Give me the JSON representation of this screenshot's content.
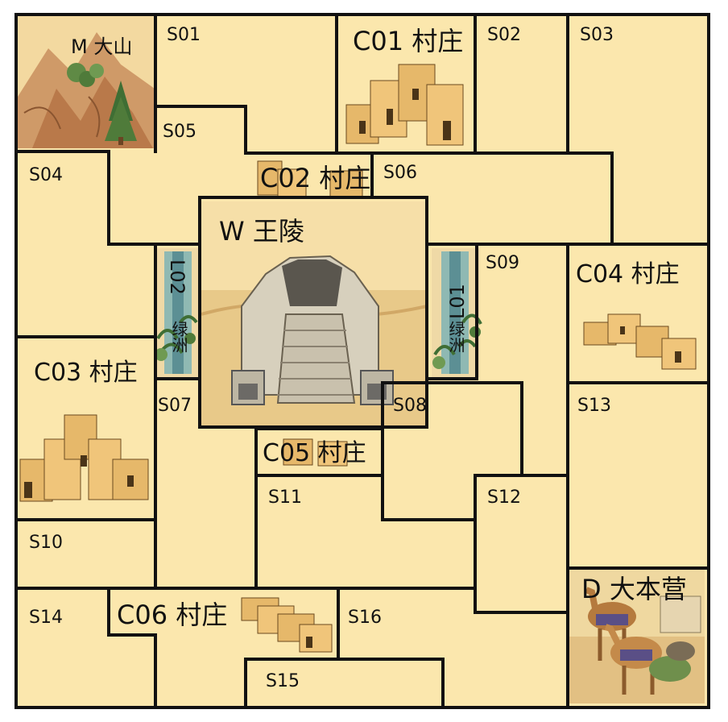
{
  "colors": {
    "parchment": "#fbe7ad",
    "wall": "#111111",
    "sand": "#e9c27a",
    "building": "#e6b86a",
    "rock": "#c98a55",
    "tree": "#4f7b3a",
    "water": "#6fa6a8",
    "camel": "#b57a3e",
    "blanket": "#5a4f86"
  },
  "board": {
    "spaces": [
      "S01",
      "S02",
      "S03",
      "S04",
      "S05",
      "S06",
      "S07",
      "S08",
      "S09",
      "S10",
      "S11",
      "S12",
      "S13",
      "S14",
      "S15",
      "S16"
    ],
    "villages": {
      "c01": "C01 村庄",
      "c02": "C02 村庄",
      "c03": "C03 村庄",
      "c04": "C04 村庄",
      "c05": "C05 村庄",
      "c06": "C06 村庄"
    },
    "mountain": "M 大山",
    "tomb": "W 王陵",
    "oasis_l02": {
      "code": "L02",
      "name": "绿洲"
    },
    "oasis_l01": {
      "code": "L01",
      "name": "绿洲"
    },
    "camp": "D 大本营"
  },
  "icons": {
    "mountain": "mountain-tree-icon",
    "village": "village-houses-icon",
    "tomb": "stepped-tomb-icon",
    "oasis": "palm-oasis-icon",
    "camp": "camel-caravan-icon"
  }
}
